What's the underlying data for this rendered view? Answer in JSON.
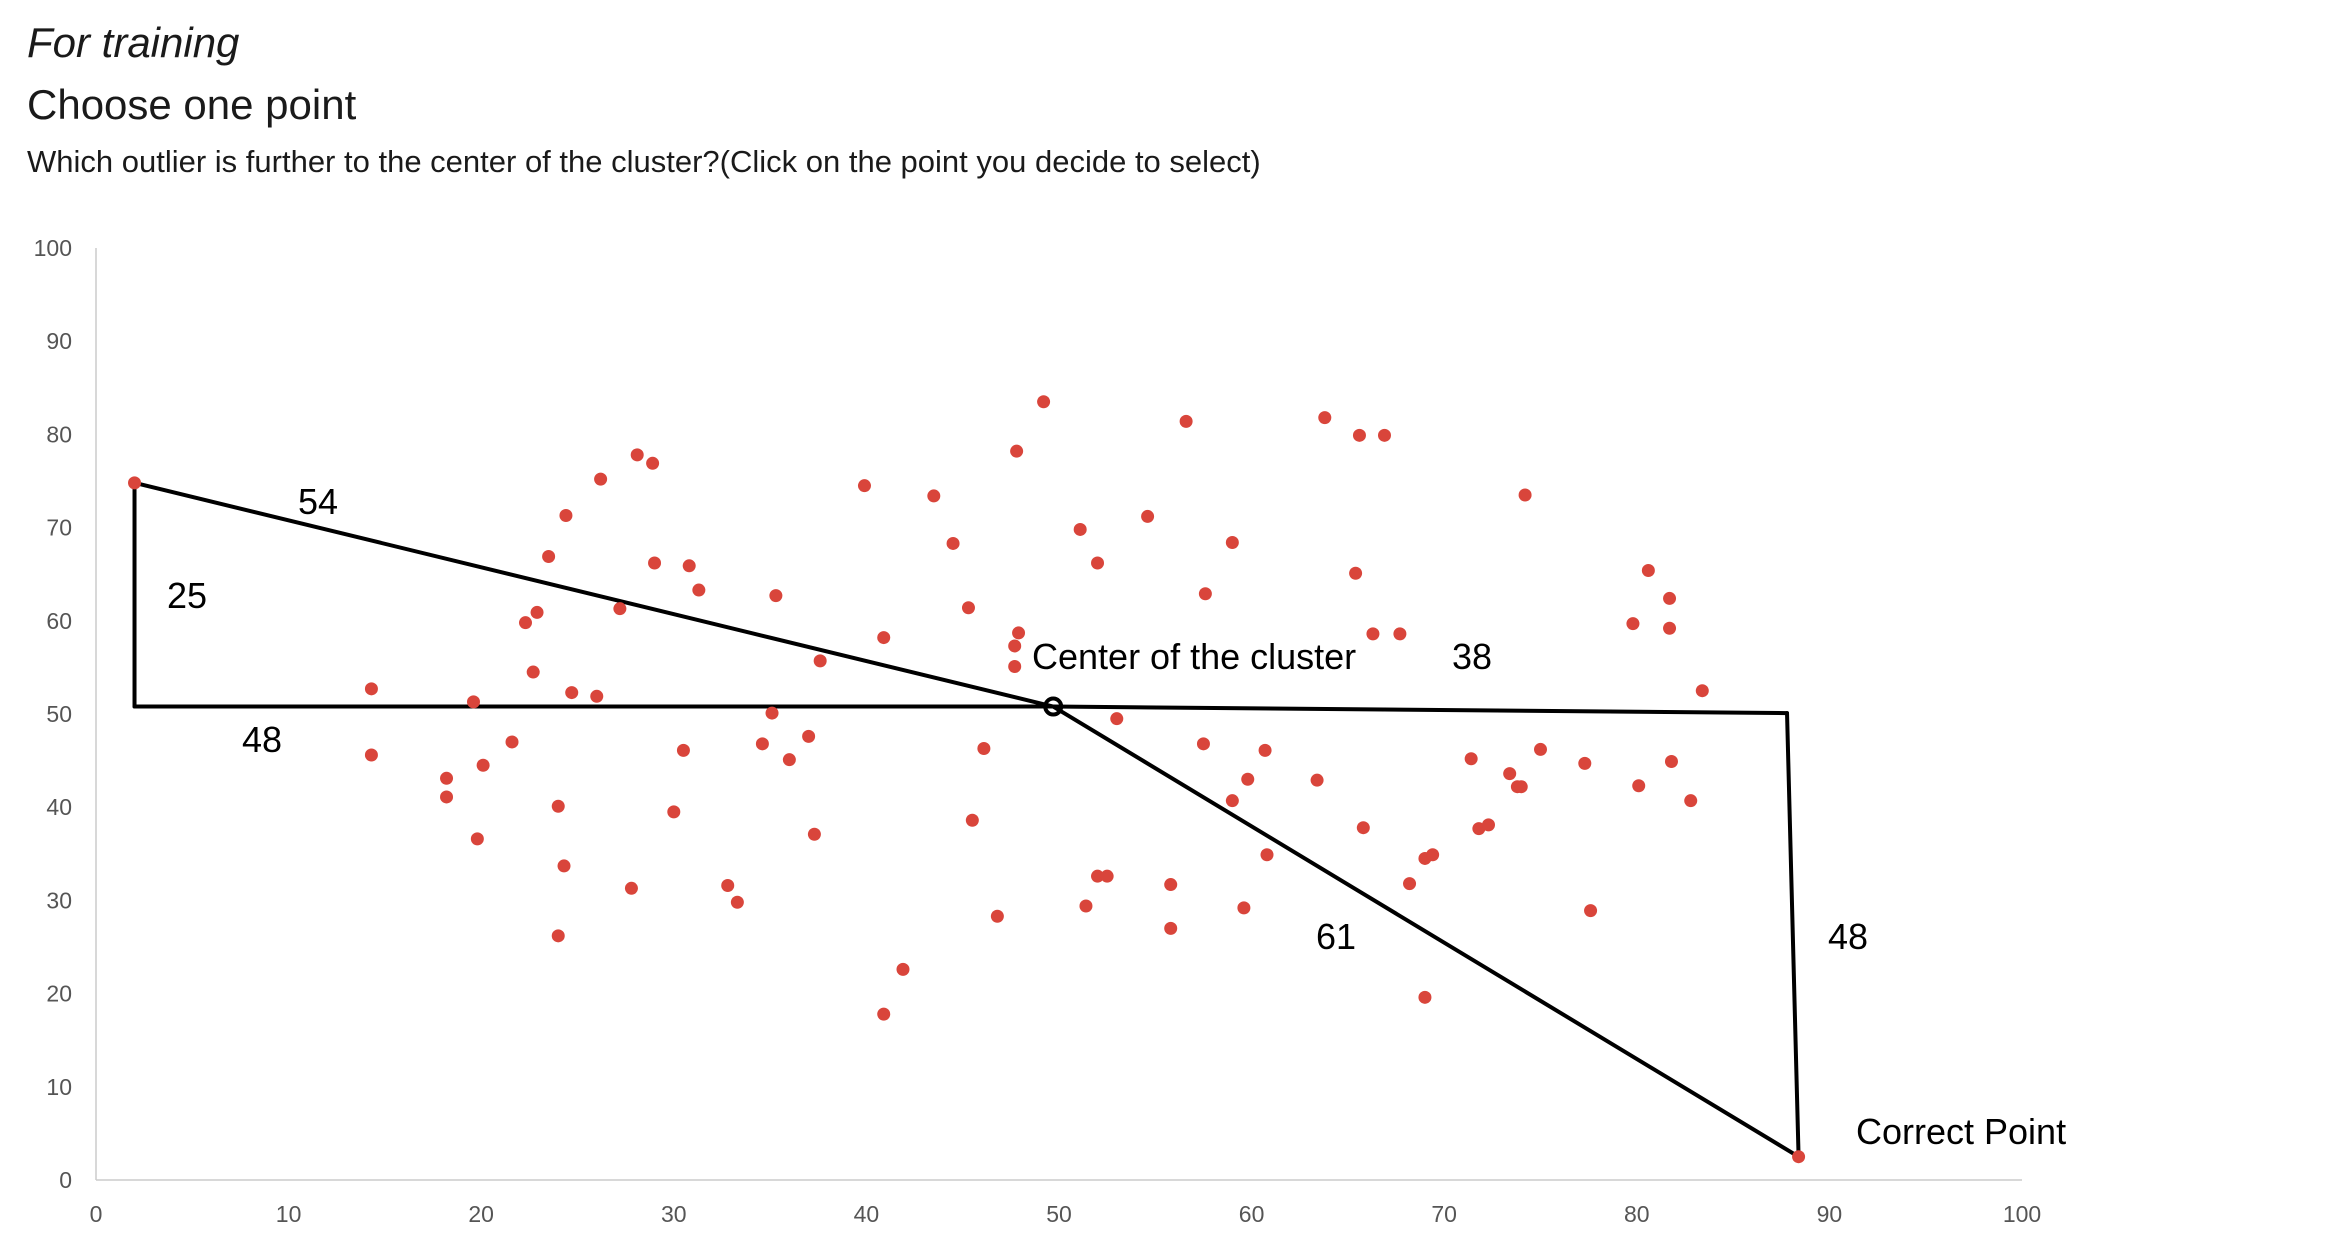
{
  "header": {
    "section_label": "For training",
    "title": "Choose one point",
    "question": "Which outlier is further to the center of the cluster?(Click on the point you decide to select)"
  },
  "colors": {
    "point": "#d9453b",
    "axis": "#cccccc",
    "tick_label": "#555555",
    "line": "#000000"
  },
  "chart_data": {
    "type": "scatter",
    "xlim": [
      0,
      100
    ],
    "ylim": [
      0,
      100
    ],
    "x_ticks": [
      0,
      10,
      20,
      30,
      40,
      50,
      60,
      70,
      80,
      90,
      100
    ],
    "y_ticks": [
      0,
      10,
      20,
      30,
      40,
      50,
      60,
      70,
      80,
      90,
      100
    ],
    "grid": false,
    "points": [
      [
        2,
        74.8
      ],
      [
        14.3,
        52.7
      ],
      [
        14.3,
        45.6
      ],
      [
        18.2,
        43.1
      ],
      [
        18.2,
        41.1
      ],
      [
        19.6,
        51.3
      ],
      [
        19.8,
        36.6
      ],
      [
        20.1,
        44.5
      ],
      [
        21.6,
        47.0
      ],
      [
        22.3,
        59.8
      ],
      [
        22.7,
        54.5
      ],
      [
        22.9,
        60.9
      ],
      [
        23.5,
        66.9
      ],
      [
        24.0,
        40.1
      ],
      [
        24.3,
        33.7
      ],
      [
        24.4,
        71.3
      ],
      [
        24.0,
        26.2
      ],
      [
        24.7,
        52.3
      ],
      [
        26.0,
        51.9
      ],
      [
        26.2,
        75.2
      ],
      [
        27.2,
        61.3
      ],
      [
        27.8,
        31.3
      ],
      [
        28.1,
        77.8
      ],
      [
        28.9,
        76.9
      ],
      [
        29.0,
        66.2
      ],
      [
        30.0,
        39.5
      ],
      [
        30.5,
        46.1
      ],
      [
        30.8,
        65.9
      ],
      [
        31.3,
        63.3
      ],
      [
        32.8,
        31.6
      ],
      [
        33.3,
        29.8
      ],
      [
        34.6,
        46.8
      ],
      [
        35.1,
        50.1
      ],
      [
        35.3,
        62.7
      ],
      [
        36.0,
        45.1
      ],
      [
        37.0,
        47.6
      ],
      [
        37.3,
        37.1
      ],
      [
        37.6,
        55.7
      ],
      [
        39.9,
        74.5
      ],
      [
        40.9,
        58.2
      ],
      [
        40.9,
        17.8
      ],
      [
        41.9,
        22.6
      ],
      [
        43.5,
        73.4
      ],
      [
        44.5,
        68.3
      ],
      [
        45.3,
        61.4
      ],
      [
        45.5,
        38.6
      ],
      [
        46.1,
        46.3
      ],
      [
        46.8,
        28.3
      ],
      [
        47.7,
        57.3
      ],
      [
        47.7,
        55.1
      ],
      [
        47.8,
        78.2
      ],
      [
        47.9,
        58.7
      ],
      [
        49.2,
        83.5
      ],
      [
        51.1,
        69.8
      ],
      [
        51.4,
        29.4
      ],
      [
        52.0,
        32.6
      ],
      [
        52.0,
        66.2
      ],
      [
        52.5,
        32.6
      ],
      [
        53.0,
        49.5
      ],
      [
        54.6,
        71.2
      ],
      [
        55.8,
        31.7
      ],
      [
        55.8,
        27.0
      ],
      [
        56.6,
        81.4
      ],
      [
        57.5,
        46.8
      ],
      [
        57.6,
        62.9
      ],
      [
        59.0,
        40.7
      ],
      [
        59.0,
        68.4
      ],
      [
        59.6,
        29.2
      ],
      [
        59.8,
        43.0
      ],
      [
        60.7,
        46.1
      ],
      [
        60.8,
        34.9
      ],
      [
        63.4,
        42.9
      ],
      [
        63.8,
        81.8
      ],
      [
        65.4,
        65.1
      ],
      [
        65.6,
        79.9
      ],
      [
        65.8,
        37.8
      ],
      [
        66.3,
        58.6
      ],
      [
        66.9,
        79.9
      ],
      [
        67.7,
        58.6
      ],
      [
        68.2,
        31.8
      ],
      [
        69.0,
        34.5
      ],
      [
        69.0,
        19.6
      ],
      [
        69.4,
        34.9
      ],
      [
        71.4,
        45.2
      ],
      [
        71.8,
        37.7
      ],
      [
        72.3,
        38.1
      ],
      [
        73.4,
        43.6
      ],
      [
        73.8,
        42.2
      ],
      [
        74.0,
        42.2
      ],
      [
        74.2,
        73.5
      ],
      [
        75.0,
        46.2
      ],
      [
        77.3,
        44.7
      ],
      [
        77.6,
        28.9
      ],
      [
        79.8,
        59.7
      ],
      [
        80.1,
        42.3
      ],
      [
        80.6,
        65.4
      ],
      [
        81.7,
        62.4
      ],
      [
        81.7,
        59.2
      ],
      [
        81.8,
        44.9
      ],
      [
        82.8,
        40.7
      ],
      [
        83.4,
        52.5
      ],
      [
        88.4,
        2.5
      ]
    ],
    "center": [
      49.7,
      50.8
    ],
    "annotations": {
      "center_label": "Center of the cluster",
      "correct_label": "Correct Point",
      "left_hyp": "54",
      "left_vertical": "25",
      "left_horizontal": "48",
      "right_horizontal": "38",
      "right_hyp": "61",
      "right_vertical": "48"
    }
  }
}
